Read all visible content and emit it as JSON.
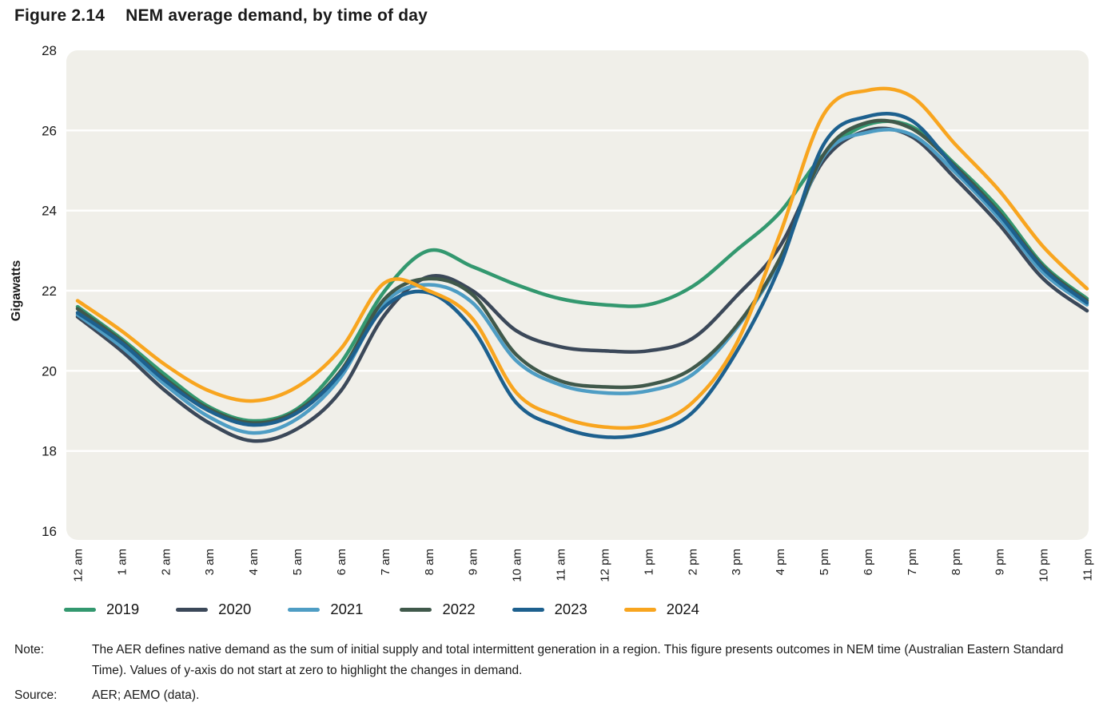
{
  "figure": {
    "label": "Figure 2.14",
    "title": "NEM average demand, by time of day"
  },
  "chart_data": {
    "type": "line",
    "title": "NEM average demand, by time of day",
    "ylabel": "Gigawatts",
    "xlabel": "",
    "ylim": [
      16,
      28
    ],
    "y_ticks": [
      16,
      18,
      20,
      22,
      24,
      26,
      28
    ],
    "grid": "horizontal",
    "legend_position": "bottom",
    "plot_bg_color": "#f0efe9",
    "grid_color": "#ffffff",
    "x_labels": [
      "12 am",
      "1 am",
      "2 am",
      "3 am",
      "4 am",
      "5 am",
      "6 am",
      "7 am",
      "8 am",
      "9 am",
      "10 am",
      "11 am",
      "12 pm",
      "1 pm",
      "2 pm",
      "3 pm",
      "4 pm",
      "5 pm",
      "6 pm",
      "7 pm",
      "8 pm",
      "9 pm",
      "10 pm",
      "11 pm"
    ],
    "series": [
      {
        "name": "2019",
        "color": "#33986f",
        "values": [
          21.6,
          20.8,
          19.9,
          19.1,
          18.75,
          19.05,
          20.2,
          22.0,
          23.0,
          22.6,
          22.15,
          21.8,
          21.65,
          21.65,
          22.1,
          23.0,
          23.95,
          25.4,
          26.15,
          26.1,
          25.15,
          24.05,
          22.65,
          21.8
        ]
      },
      {
        "name": "2020",
        "color": "#3b4859",
        "values": [
          21.35,
          20.5,
          19.5,
          18.7,
          18.25,
          18.55,
          19.5,
          21.4,
          22.35,
          22.0,
          21.0,
          20.6,
          20.5,
          20.5,
          20.8,
          21.85,
          23.1,
          25.25,
          26.0,
          25.85,
          24.8,
          23.65,
          22.3,
          21.5
        ]
      },
      {
        "name": "2021",
        "color": "#4e9dc4",
        "values": [
          21.4,
          20.6,
          19.65,
          18.85,
          18.45,
          18.8,
          19.85,
          21.7,
          22.15,
          21.7,
          20.25,
          19.65,
          19.45,
          19.5,
          19.9,
          21.05,
          22.75,
          25.35,
          25.95,
          25.9,
          24.95,
          23.8,
          22.45,
          21.65
        ]
      },
      {
        "name": "2022",
        "color": "#40594b",
        "values": [
          21.55,
          20.75,
          19.8,
          19.05,
          18.7,
          19.0,
          20.0,
          21.8,
          22.3,
          21.9,
          20.4,
          19.75,
          19.6,
          19.65,
          20.05,
          21.1,
          22.8,
          25.4,
          26.2,
          26.05,
          25.1,
          23.95,
          22.6,
          21.75
        ]
      },
      {
        "name": "2023",
        "color": "#1d608e",
        "values": [
          21.45,
          20.7,
          19.75,
          19.0,
          18.65,
          18.95,
          19.95,
          21.6,
          21.95,
          21.05,
          19.2,
          18.6,
          18.35,
          18.45,
          18.95,
          20.45,
          22.6,
          25.65,
          26.35,
          26.25,
          25.05,
          23.9,
          22.55,
          21.7
        ]
      },
      {
        "name": "2024",
        "color": "#f8a51f",
        "values": [
          21.75,
          21.0,
          20.15,
          19.5,
          19.25,
          19.6,
          20.55,
          22.2,
          22.0,
          21.3,
          19.45,
          18.85,
          18.6,
          18.65,
          19.2,
          20.65,
          23.4,
          26.4,
          27.0,
          26.85,
          25.65,
          24.5,
          23.1,
          22.05
        ]
      }
    ]
  },
  "note": {
    "label": "Note:",
    "text": "The AER defines native demand as the sum of initial supply and total intermittent generation in a region. This figure presents outcomes in NEM time (Australian Eastern Standard Time). Values of y-axis do not start at zero to highlight the changes in demand."
  },
  "source": {
    "label": "Source:",
    "text": "AER; AEMO (data)."
  }
}
